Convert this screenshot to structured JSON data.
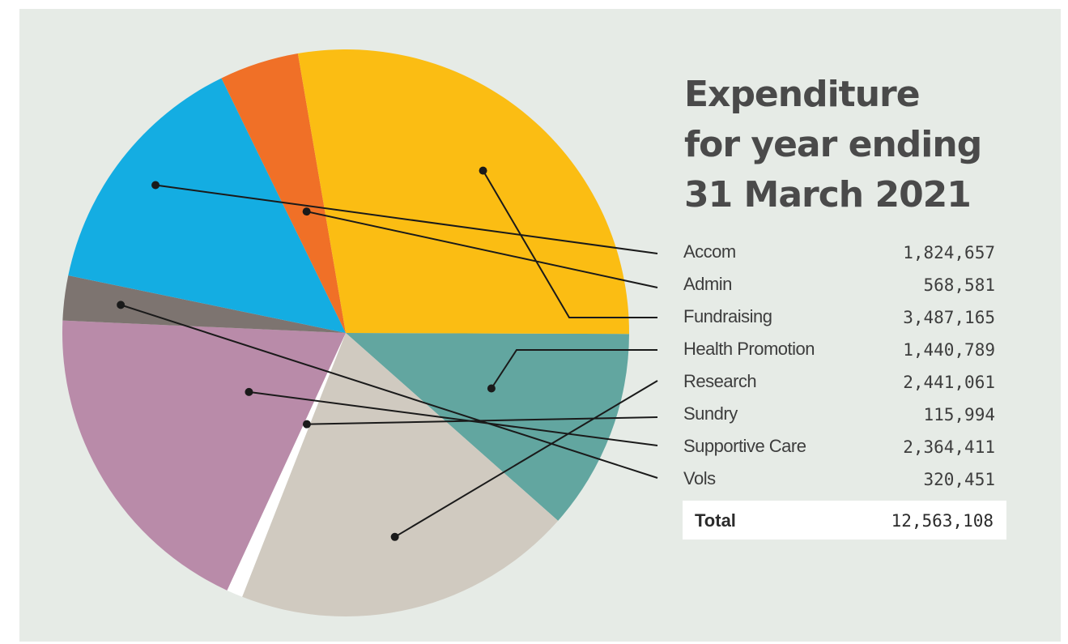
{
  "title_lines": [
    "Expenditure",
    "for year ending",
    "31 March 2021"
  ],
  "chart_data": {
    "type": "pie",
    "title": "Expenditure for year ending 31 March 2021",
    "categories": [
      "Accom",
      "Admin",
      "Fundraising",
      "Health Promotion",
      "Research",
      "Sundry",
      "Supportive Care",
      "Vols"
    ],
    "values": [
      1824657,
      568581,
      3487165,
      1440789,
      2441061,
      115994,
      2364411,
      320451
    ],
    "value_labels": [
      "1,824,657",
      "568,581",
      "3,487,165",
      "1,440,789",
      "2,441,061",
      "115,994",
      "2,364,411",
      "320,451"
    ],
    "colors": [
      "#14ade2",
      "#f07027",
      "#fbbd13",
      "#62a6a0",
      "#d0cac0",
      "#ffffff",
      "#b98ba9",
      "#7d7470"
    ],
    "slice_order": [
      "Health Promotion",
      "Research",
      "Sundry",
      "Supportive Care",
      "Vols",
      "Accom",
      "Admin",
      "Fundraising"
    ],
    "total_label": "Total",
    "total_value": "12,563,108",
    "legend_position": "right"
  }
}
